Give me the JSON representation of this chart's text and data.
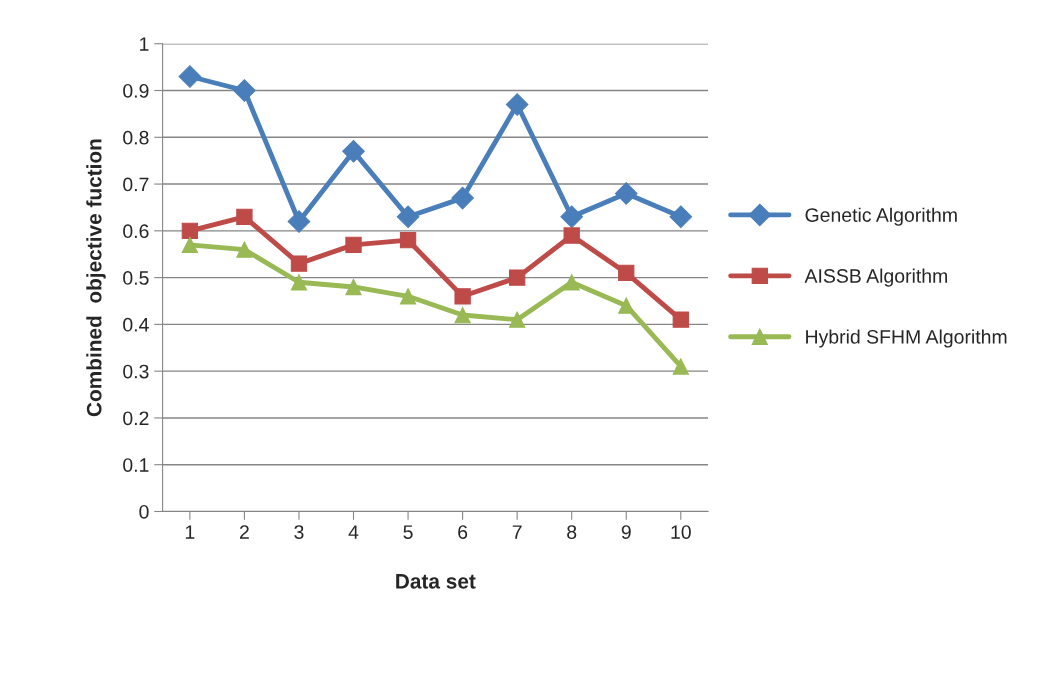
{
  "chart_data": {
    "type": "line",
    "xlabel": "Data set",
    "ylabel": "Combined  objective fuction",
    "categories": [
      "1",
      "2",
      "3",
      "4",
      "5",
      "6",
      "7",
      "8",
      "9",
      "10"
    ],
    "series": [
      {
        "name": "Genetic Algorithm",
        "color": "#4a7ebb",
        "marker": "diamond",
        "values": [
          0.93,
          0.9,
          0.62,
          0.77,
          0.63,
          0.67,
          0.87,
          0.63,
          0.68,
          0.63
        ]
      },
      {
        "name": "AISSB Algorithm",
        "color": "#be4b48",
        "marker": "square",
        "values": [
          0.6,
          0.63,
          0.53,
          0.57,
          0.58,
          0.46,
          0.5,
          0.59,
          0.51,
          0.41
        ]
      },
      {
        "name": "Hybrid SFHM Algorithm",
        "color": "#98b954",
        "marker": "triangle",
        "values": [
          0.57,
          0.56,
          0.49,
          0.48,
          0.46,
          0.42,
          0.41,
          0.49,
          0.44,
          0.31
        ]
      }
    ],
    "ylim": [
      0,
      1
    ],
    "yticks": [
      0,
      0.1,
      0.2,
      0.3,
      0.4,
      0.5,
      0.6,
      0.7,
      0.8,
      0.9,
      1
    ],
    "grid": "y",
    "legend": "right",
    "line_style": "solid"
  }
}
